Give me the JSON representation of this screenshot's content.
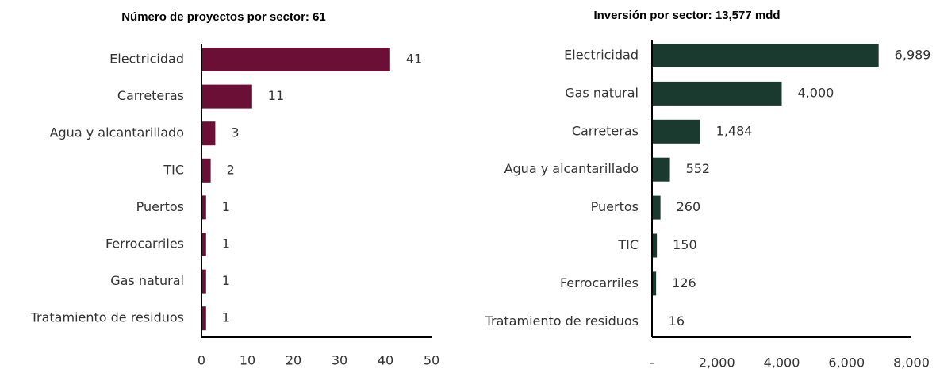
{
  "chart_data": [
    {
      "type": "hbar",
      "title": "Número de proyectos por sector: 61",
      "categories": [
        "Electricidad",
        "Carreteras",
        "Agua y alcantarillado",
        "TIC",
        "Puertos",
        "Ferrocarriles",
        "Gas natural",
        "Tratamiento de residuos"
      ],
      "values": [
        41,
        11,
        3,
        2,
        1,
        1,
        1,
        1
      ],
      "color": "#6b0f36",
      "xlim": [
        0,
        50
      ],
      "xticks": [
        0,
        10,
        20,
        30,
        40,
        50
      ]
    },
    {
      "type": "hbar",
      "title": "Inversión por sector: 13,577 mdd",
      "categories": [
        "Electricidad",
        "Gas natural",
        "Carreteras",
        "Agua y alcantarillado",
        "Puertos",
        "TIC",
        "Ferrocarriles",
        "Tratamiento de residuos"
      ],
      "values": [
        6989,
        4000,
        1484,
        552,
        260,
        150,
        126,
        16
      ],
      "value_labels": [
        "6,989",
        "4,000",
        "1,484",
        "552",
        "260",
        "150",
        "126",
        "16"
      ],
      "color": "#1b3a2f",
      "xlim": [
        0,
        8000
      ],
      "xticks": [
        {
          "value": 0,
          "label": "-"
        },
        {
          "value": 2000,
          "label": "2,000"
        },
        {
          "value": 4000,
          "label": "4,000"
        },
        {
          "value": 6000,
          "label": "6,000"
        },
        {
          "value": 8000,
          "label": "8,000"
        }
      ]
    }
  ]
}
